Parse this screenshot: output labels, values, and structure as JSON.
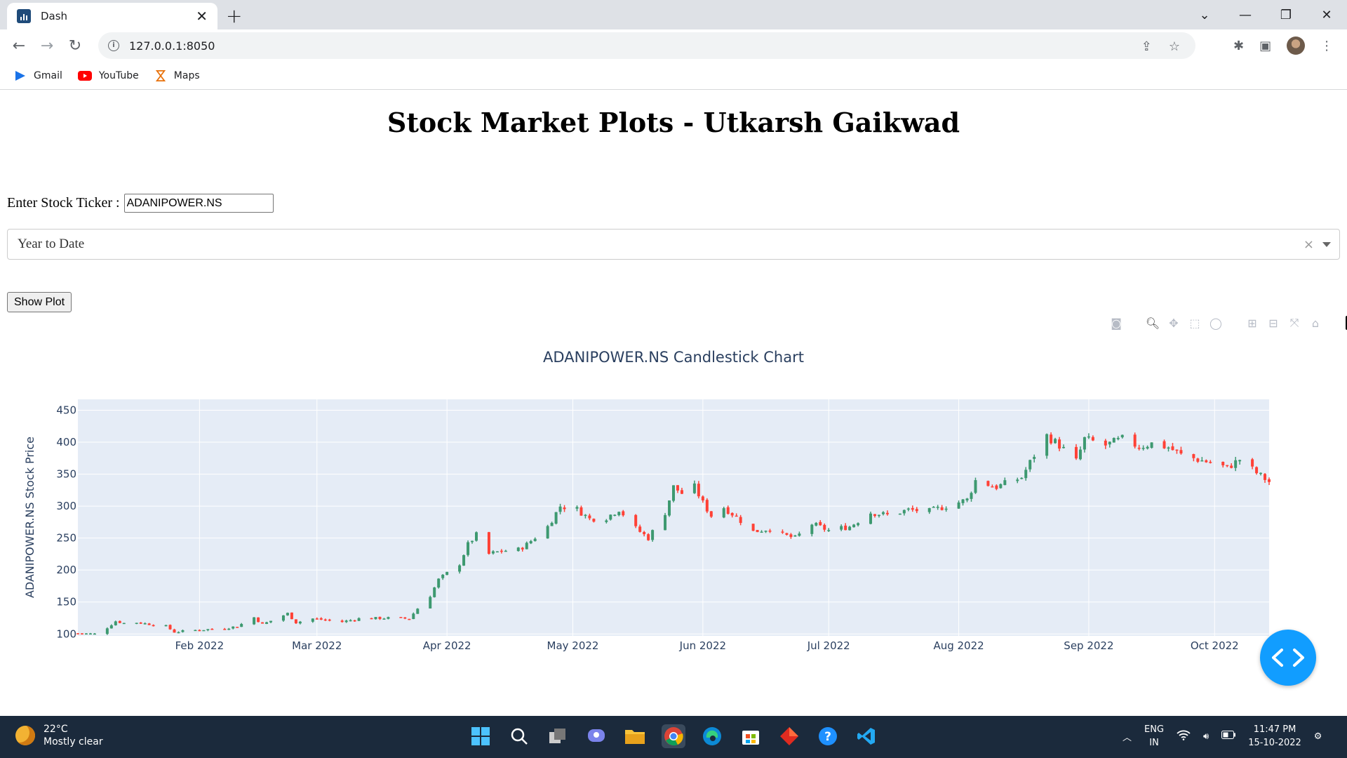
{
  "browser": {
    "tab_title": "Dash",
    "url": "127.0.0.1:8050",
    "bookmarks": [
      {
        "label": "Gmail",
        "icon": "gmail-icon"
      },
      {
        "label": "YouTube",
        "icon": "youtube-icon"
      },
      {
        "label": "Maps",
        "icon": "maps-icon"
      }
    ]
  },
  "page": {
    "title": "Stock Market Plots - Utkarsh Gaikwad",
    "ticker_label": "Enter Stock Ticker :",
    "ticker_value": "ADANIPOWER.NS",
    "period_selected": "Year to Date",
    "show_button": "Show Plot"
  },
  "chart_data": {
    "type": "candlestick",
    "title": "ADANIPOWER.NS Candlestick Chart",
    "ylabel": "ADANIPOWER.NS Stock Price",
    "xlabel": "",
    "ylim": [
      97,
      467
    ],
    "xlim": [
      "2022-01-03",
      "2022-10-14"
    ],
    "yticks": [
      100,
      150,
      200,
      250,
      300,
      350,
      400,
      450
    ],
    "xticks": [
      {
        "date": "2022-02-01",
        "label": "Feb 2022"
      },
      {
        "date": "2022-03-01",
        "label": "Mar 2022"
      },
      {
        "date": "2022-04-01",
        "label": "Apr 2022"
      },
      {
        "date": "2022-05-01",
        "label": "May 2022"
      },
      {
        "date": "2022-06-01",
        "label": "Jun 2022"
      },
      {
        "date": "2022-07-01",
        "label": "Jul 2022"
      },
      {
        "date": "2022-08-01",
        "label": "Aug 2022"
      },
      {
        "date": "2022-09-01",
        "label": "Sep 2022"
      },
      {
        "date": "2022-10-01",
        "label": "Oct 2022"
      }
    ],
    "increasing_color": "#3d9970",
    "decreasing_color": "#ff4136",
    "price_path": [
      [
        "2022-01-03",
        101
      ],
      [
        "2022-01-07",
        100
      ],
      [
        "2022-01-10",
        110
      ],
      [
        "2022-01-12",
        120
      ],
      [
        "2022-01-14",
        117
      ],
      [
        "2022-01-17",
        118
      ],
      [
        "2022-01-24",
        112
      ],
      [
        "2022-01-26",
        103
      ],
      [
        "2022-01-31",
        106
      ],
      [
        "2022-02-07",
        109
      ],
      [
        "2022-02-10",
        112
      ],
      [
        "2022-02-14",
        126
      ],
      [
        "2022-02-16",
        115
      ],
      [
        "2022-02-22",
        132
      ],
      [
        "2022-02-24",
        118
      ],
      [
        "2022-02-28",
        124
      ],
      [
        "2022-03-07",
        119
      ],
      [
        "2022-03-11",
        124
      ],
      [
        "2022-03-18",
        125
      ],
      [
        "2022-03-23",
        124
      ],
      [
        "2022-03-25",
        140
      ],
      [
        "2022-03-28",
        160
      ],
      [
        "2022-03-30",
        185
      ],
      [
        "2022-04-04",
        210
      ],
      [
        "2022-04-06",
        240
      ],
      [
        "2022-04-08",
        255
      ],
      [
        "2022-04-11",
        225
      ],
      [
        "2022-04-14",
        230
      ],
      [
        "2022-04-18",
        232
      ],
      [
        "2022-04-20",
        240
      ],
      [
        "2022-04-25",
        268
      ],
      [
        "2022-04-28",
        300
      ],
      [
        "2022-05-02",
        295
      ],
      [
        "2022-05-05",
        280
      ],
      [
        "2022-05-09",
        282
      ],
      [
        "2022-05-12",
        295
      ],
      [
        "2022-05-16",
        265
      ],
      [
        "2022-05-19",
        250
      ],
      [
        "2022-05-23",
        290
      ],
      [
        "2022-05-25",
        330
      ],
      [
        "2022-05-27",
        320
      ],
      [
        "2022-05-30",
        330
      ],
      [
        "2022-06-01",
        305
      ],
      [
        "2022-06-03",
        285
      ],
      [
        "2022-06-06",
        298
      ],
      [
        "2022-06-09",
        283
      ],
      [
        "2022-06-13",
        260
      ],
      [
        "2022-06-17",
        265
      ],
      [
        "2022-06-20",
        255
      ],
      [
        "2022-06-23",
        250
      ],
      [
        "2022-06-27",
        272
      ],
      [
        "2022-07-01",
        262
      ],
      [
        "2022-07-06",
        268
      ],
      [
        "2022-07-11",
        290
      ],
      [
        "2022-07-15",
        286
      ],
      [
        "2022-07-20",
        294
      ],
      [
        "2022-07-25",
        292
      ],
      [
        "2022-07-29",
        300
      ],
      [
        "2022-08-03",
        310
      ],
      [
        "2022-08-05",
        340
      ],
      [
        "2022-08-10",
        330
      ],
      [
        "2022-08-16",
        345
      ],
      [
        "2022-08-19",
        380
      ],
      [
        "2022-08-22",
        410
      ],
      [
        "2022-08-25",
        395
      ],
      [
        "2022-08-29",
        370
      ],
      [
        "2022-08-31",
        405
      ],
      [
        "2022-09-05",
        395
      ],
      [
        "2022-09-09",
        405
      ],
      [
        "2022-09-13",
        393
      ],
      [
        "2022-09-16",
        398
      ],
      [
        "2022-09-20",
        392
      ],
      [
        "2022-09-23",
        380
      ],
      [
        "2022-09-27",
        373
      ],
      [
        "2022-09-30",
        368
      ],
      [
        "2022-10-04",
        360
      ],
      [
        "2022-10-07",
        373
      ],
      [
        "2022-10-11",
        352
      ],
      [
        "2022-10-14",
        338
      ]
    ]
  },
  "taskbar": {
    "temperature": "22°C",
    "weather": "Mostly clear",
    "lang": "ENG",
    "region": "IN",
    "time": "11:47 PM",
    "date": "15-10-2022"
  }
}
